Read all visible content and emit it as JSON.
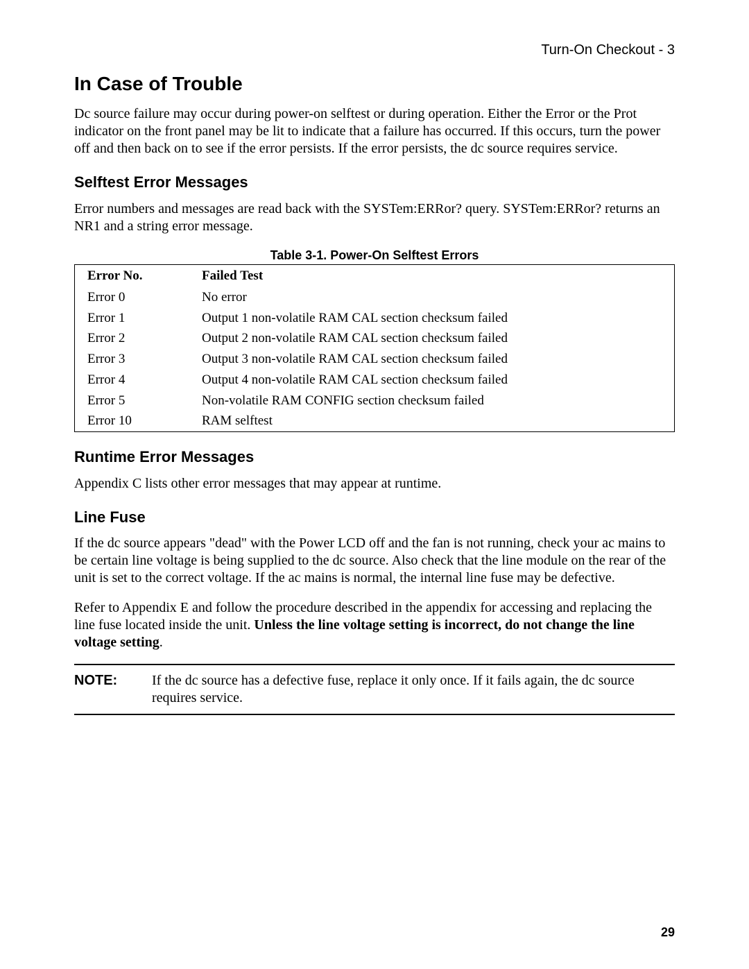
{
  "header": {
    "text": "Turn-On Checkout - 3"
  },
  "title": "In Case of Trouble",
  "intro": "Dc source failure may occur during power-on selftest or during operation. Either the Error or the Prot indicator on the front panel may be lit to indicate that a failure has occurred. If this occurs, turn the power off and then back on to see if the error persists. If the error persists, the dc source requires service.",
  "section_selftest": {
    "heading": "Selftest Error Messages",
    "body": "Error numbers and messages are read back with the SYSTem:ERRor? query. SYSTem:ERRor? returns an NR1 and a string error message."
  },
  "table": {
    "caption": "Table 3-1. Power-On Selftest Errors",
    "columns": [
      "Error No.",
      "Failed Test"
    ],
    "rows": [
      [
        "Error 0",
        "No error"
      ],
      [
        "Error 1",
        "Output 1 non-volatile RAM CAL section checksum failed"
      ],
      [
        "Error 2",
        "Output 2 non-volatile RAM CAL section checksum failed"
      ],
      [
        "Error 3",
        "Output 3 non-volatile RAM CAL section checksum failed"
      ],
      [
        "Error 4",
        "Output 4 non-volatile RAM CAL section checksum failed"
      ],
      [
        "Error 5",
        "Non-volatile RAM CONFIG section checksum failed"
      ],
      [
        "Error 10",
        "RAM selftest"
      ]
    ]
  },
  "section_runtime": {
    "heading": "Runtime Error Messages",
    "body": "Appendix C lists other error messages that may appear at runtime."
  },
  "section_linefuse": {
    "heading": "Line Fuse",
    "p1": "If the dc source appears \"dead\" with the Power LCD off and the fan is not running, check your ac mains to be certain line voltage is being supplied to the dc source. Also check that the line module on the rear of the unit is set to the correct voltage. If the ac mains is normal, the internal line fuse may be defective.",
    "p2_pre": "Refer to Appendix E and follow the procedure described in the appendix for accessing and replacing the line fuse located inside the unit. ",
    "p2_bold": "Unless the line voltage setting is incorrect, do not change the line voltage setting",
    "p2_post": "."
  },
  "note": {
    "label": "NOTE:",
    "text": "If the dc source has a defective fuse, replace it only once. If it fails again, the dc source requires service."
  },
  "page_number": "29"
}
